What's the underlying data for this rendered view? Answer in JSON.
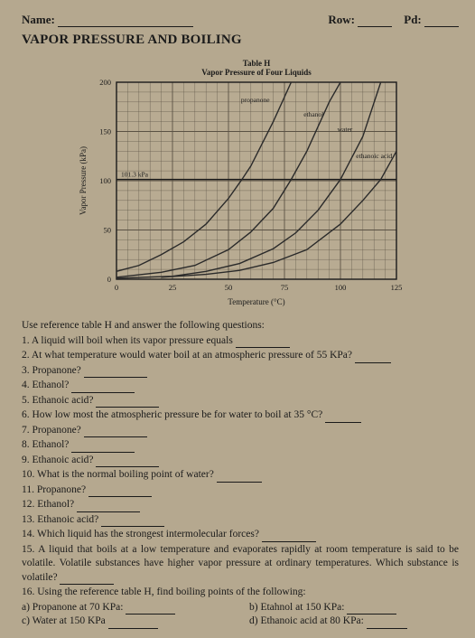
{
  "header": {
    "name_label": "Name:",
    "row_label": "Row:",
    "pd_label": "Pd:"
  },
  "title": "VAPOR PRESSURE AND BOILING",
  "chart": {
    "type": "line",
    "table_label": "Table H",
    "subtitle": "Vapor Pressure of Four Liquids",
    "xlabel": "Temperature (°C)",
    "ylabel": "Vapor Pressure (kPa)",
    "xlim": [
      0,
      125
    ],
    "ylim": [
      0,
      200
    ],
    "xtick_step": 25,
    "ytick_step": 50,
    "xticks": [
      0,
      25,
      50,
      75,
      100,
      125
    ],
    "yticks": [
      0,
      50,
      100,
      150,
      200
    ],
    "ref_line_value": 101.3,
    "ref_line_label": "101.3 kPa",
    "background_color": "#b8ab92",
    "grid_color": "#5a5244",
    "line_color": "#2a2a2a",
    "axis_color": "#1a1a1a",
    "label_fontsize": 9,
    "tick_fontsize": 8.5,
    "line_width": 1.4,
    "series": [
      {
        "name": "propanone",
        "label_xy": [
          62,
          180
        ],
        "points": [
          [
            0,
            8
          ],
          [
            10,
            14
          ],
          [
            20,
            25
          ],
          [
            30,
            38
          ],
          [
            40,
            56
          ],
          [
            50,
            82
          ],
          [
            56,
            101.3
          ],
          [
            60,
            115
          ],
          [
            70,
            160
          ],
          [
            78,
            200
          ]
        ]
      },
      {
        "name": "ethanol",
        "label_xy": [
          88,
          165
        ],
        "points": [
          [
            0,
            2
          ],
          [
            20,
            7
          ],
          [
            35,
            14
          ],
          [
            50,
            30
          ],
          [
            60,
            48
          ],
          [
            70,
            72
          ],
          [
            78,
            101.3
          ],
          [
            85,
            130
          ],
          [
            95,
            180
          ],
          [
            100,
            200
          ]
        ]
      },
      {
        "name": "water",
        "label_xy": [
          102,
          150
        ],
        "points": [
          [
            0,
            1
          ],
          [
            25,
            3
          ],
          [
            40,
            8
          ],
          [
            55,
            16
          ],
          [
            70,
            31
          ],
          [
            80,
            47
          ],
          [
            90,
            70
          ],
          [
            100,
            101.3
          ],
          [
            110,
            145
          ],
          [
            118,
            200
          ]
        ]
      },
      {
        "name": "ethanoic acid",
        "label_xy": [
          115,
          123
        ],
        "points": [
          [
            20,
            2
          ],
          [
            40,
            5
          ],
          [
            55,
            9
          ],
          [
            70,
            17
          ],
          [
            85,
            30
          ],
          [
            100,
            56
          ],
          [
            110,
            80
          ],
          [
            118,
            101.3
          ],
          [
            125,
            130
          ]
        ]
      }
    ]
  },
  "questions": {
    "intro": "Use reference table H and answer the following questions:",
    "q1": "1.  A liquid will boil when its vapor pressure equals",
    "q2": "2.  At what temperature would water boil at an atmospheric pressure of 55 KPa?",
    "q3": "3.  Propanone?",
    "q4": "4.  Ethanol?",
    "q5": "5.  Ethanoic acid?",
    "q6": "6.  How low most the atmospheric pressure  be for water to boil at 35 °C?",
    "q7": "7.  Propanone?",
    "q8": "8.  Ethanol?",
    "q9": "9.  Ethanoic acid?",
    "q10": "10. What is the normal boiling point of water?",
    "q11": "11. Propanone?",
    "q12": "12. Ethanol?",
    "q13": "13. Ethanoic acid?",
    "q14": "14. Which liquid has the strongest intermolecular forces?",
    "q15": "15. A liquid that boils at a low temperature and evaporates rapidly at room temperature is said to be volatile. Volatile substances have higher vapor pressure at ordinary temperatures. Which substance is volatile?",
    "q16": "16. Using the reference table H, find boiling points of the following:",
    "q16a": "a) Propanone at 70 KPa:",
    "q16b": "b) Etahnol at 150 KPa:",
    "q16c": "c) Water at 150 KPa",
    "q16d": "d) Ethanoic acid at 80 KPa:"
  }
}
